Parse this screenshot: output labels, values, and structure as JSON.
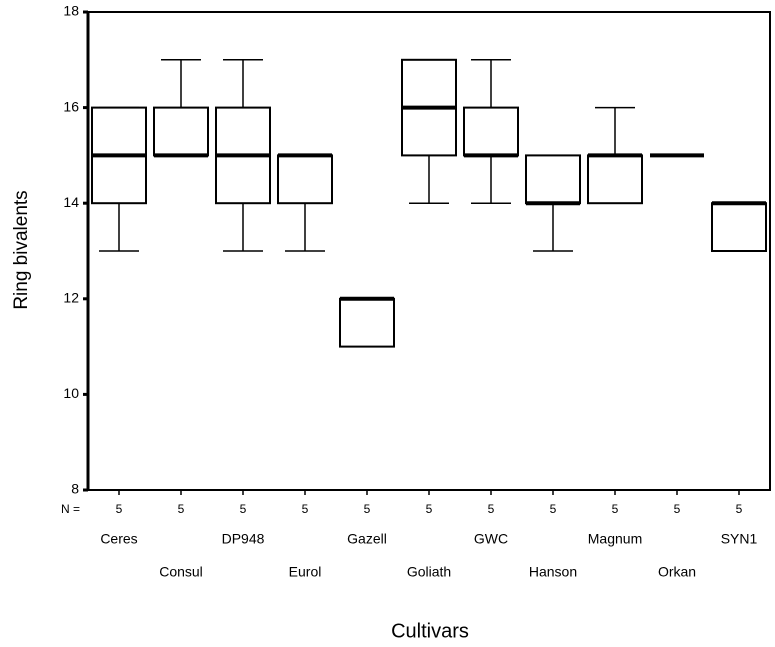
{
  "chart_data": {
    "type": "box",
    "y_label": "Ring bivalents",
    "x_label": "Cultivars",
    "categories": [
      "Ceres",
      "Consul",
      "DP948",
      "Eurol",
      "Gazell",
      "Goliath",
      "GWC",
      "Hanson",
      "Magnum",
      "Orkan",
      "SYN1"
    ],
    "boxes": [
      {
        "min": 13,
        "q1": 14,
        "median": 15,
        "q3": 16,
        "max": 16
      },
      {
        "min": 15,
        "q1": 15,
        "median": 15,
        "q3": 16,
        "max": 17
      },
      {
        "min": 13,
        "q1": 14,
        "median": 15,
        "q3": 16,
        "max": 17
      },
      {
        "min": 13,
        "q1": 14,
        "median": 15,
        "q3": 15,
        "max": 15
      },
      {
        "min": 11,
        "q1": 11,
        "median": 12,
        "q3": 12,
        "max": 12
      },
      {
        "min": 14,
        "q1": 15,
        "median": 16,
        "q3": 17,
        "max": 17
      },
      {
        "min": 14,
        "q1": 15,
        "median": 15,
        "q3": 16,
        "max": 17
      },
      {
        "min": 13,
        "q1": 14,
        "median": 14,
        "q3": 15,
        "max": 15
      },
      {
        "min": 14,
        "q1": 14,
        "median": 15,
        "q3": 15,
        "max": 16
      },
      {
        "min": 15,
        "q1": 15,
        "median": 15,
        "q3": 15,
        "max": 15
      },
      {
        "min": 13,
        "q1": 13,
        "median": 14,
        "q3": 14,
        "max": 14
      }
    ],
    "n_label": "N =",
    "n": [
      5,
      5,
      5,
      5,
      5,
      5,
      5,
      5,
      5,
      5,
      5
    ],
    "ylim": [
      8,
      18
    ],
    "yticks": [
      8,
      10,
      12,
      14,
      16,
      18
    ],
    "color": "#000000"
  }
}
